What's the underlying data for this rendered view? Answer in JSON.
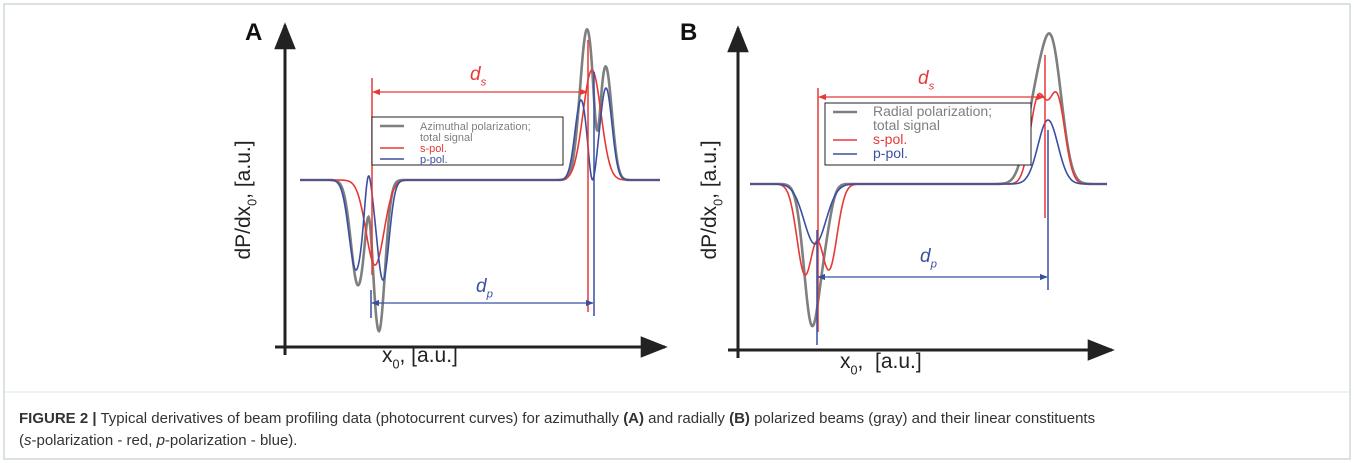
{
  "panels": [
    {
      "label": "A",
      "y_label": {
        "main": "dP/dx",
        "sub": "0",
        "rest": ", [a.u.]"
      },
      "x_label": {
        "main": "x",
        "sub": "0",
        "rest": ", [a.u.]"
      },
      "d_s": {
        "main": "d",
        "sub": "s"
      },
      "d_p": {
        "main": "d",
        "sub": "p"
      },
      "legend": {
        "gray": [
          "Azimuthal polarization;",
          "total signal"
        ],
        "red": "s-pol.",
        "blue": "p-pol."
      }
    },
    {
      "label": "B",
      "y_label": {
        "main": "dP/dx",
        "sub": "0",
        "rest": ", [a.u.]"
      },
      "x_label": {
        "main": "x",
        "sub": "0",
        "rest": ",  [a.u.]"
      },
      "d_s": {
        "main": "d",
        "sub": "s"
      },
      "d_p": {
        "main": "d",
        "sub": "p"
      },
      "legend": {
        "gray": [
          "Radial polarization;",
          "total signal"
        ],
        "red": "s-pol.",
        "blue": "p-pol."
      }
    }
  ],
  "caption": [
    [
      {
        "text": "FIGURE 2 |",
        "style": "bold"
      },
      {
        "text": " Typical derivatives of beam profiling data (photocurrent curves) for azimuthally ",
        "style": "normal"
      },
      {
        "text": "(A)",
        "style": "bold"
      },
      {
        "text": " and radially ",
        "style": "normal"
      },
      {
        "text": "(B)",
        "style": "bold"
      },
      {
        "text": " polarized beams (gray) and their linear constituents",
        "style": "normal"
      }
    ],
    [
      {
        "text": "(",
        "style": "normal"
      },
      {
        "text": "s",
        "style": "italic"
      },
      {
        "text": "-polarization - red, ",
        "style": "normal"
      },
      {
        "text": "p",
        "style": "italic"
      },
      {
        "text": "-polarization - blue).",
        "style": "normal"
      }
    ]
  ]
}
